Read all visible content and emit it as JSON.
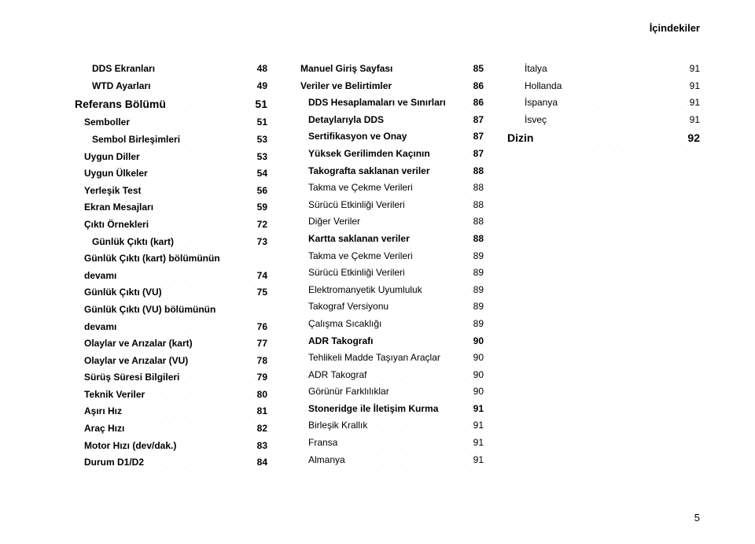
{
  "header": "İçindekiler",
  "page_number": "5",
  "columns": [
    [
      {
        "level": 2,
        "label": "DDS Ekranları",
        "page": "48"
      },
      {
        "level": 2,
        "label": "WTD Ayarları",
        "page": "49"
      },
      {
        "level": 0,
        "label": "Referans Bölümü",
        "page": "51"
      },
      {
        "level": 1,
        "label": "Semboller",
        "page": "51"
      },
      {
        "level": 2,
        "label": "Sembol Birleşimleri",
        "page": "53"
      },
      {
        "level": 1,
        "label": "Uygun Diller",
        "page": "53"
      },
      {
        "level": 1,
        "label": "Uygun Ülkeler",
        "page": "54"
      },
      {
        "level": 1,
        "label": "Yerleşik Test",
        "page": "56"
      },
      {
        "level": 1,
        "label": "Ekran Mesajları",
        "page": "59"
      },
      {
        "level": 1,
        "label": "Çıktı Örnekleri",
        "page": "72"
      },
      {
        "level": 2,
        "label": "Günlük Çıktı (kart)",
        "page": "73"
      },
      {
        "level": 1,
        "label": "Günlük Çıktı (kart) bölümünün devamı",
        "page": "74",
        "wrap": true
      },
      {
        "level": 1,
        "label": "Günlük Çıktı (VU)",
        "page": "75"
      },
      {
        "level": 1,
        "label": "Günlük Çıktı (VU) bölümünün devamı",
        "page": "76",
        "wrap": true
      },
      {
        "level": 1,
        "label": "Olaylar ve Arızalar (kart)",
        "page": "77"
      },
      {
        "level": 1,
        "label": "Olaylar ve Arızalar (VU)",
        "page": "78"
      },
      {
        "level": 1,
        "label": "Sürüş Süresi Bilgileri",
        "page": "79"
      },
      {
        "level": 1,
        "label": "Teknik Veriler",
        "page": "80"
      },
      {
        "level": 1,
        "label": "Aşırı Hız",
        "page": "81"
      },
      {
        "level": 1,
        "label": "Araç Hızı",
        "page": "82"
      },
      {
        "level": 1,
        "label": "Motor Hızı (dev/dak.)",
        "page": "83"
      },
      {
        "level": 1,
        "label": "Durum D1/D2",
        "page": "84"
      }
    ],
    [
      {
        "level": 1,
        "label": "Manuel Giriş Sayfası",
        "page": "85"
      },
      {
        "level": 1,
        "label": "Veriler ve Belirtimler",
        "page": "86"
      },
      {
        "level": 2,
        "label": "DDS Hesaplamaları ve Sınırları",
        "page": "86"
      },
      {
        "level": 2,
        "label": "Detaylarıyla DDS",
        "page": "87"
      },
      {
        "level": 2,
        "label": "Sertifikasyon ve Onay",
        "page": "87"
      },
      {
        "level": 2,
        "label": "Yüksek Gerilimden Kaçının",
        "page": "87"
      },
      {
        "level": 2,
        "label": "Takografta saklanan veriler",
        "page": "88"
      },
      {
        "level": 3,
        "label": "Takma ve Çekme Verileri",
        "page": "88"
      },
      {
        "level": 3,
        "label": "Sürücü Etkinliği Verileri",
        "page": "88"
      },
      {
        "level": 3,
        "label": "Diğer Veriler",
        "page": "88"
      },
      {
        "level": 2,
        "label": "Kartta saklanan veriler",
        "page": "88"
      },
      {
        "level": 3,
        "label": "Takma ve Çekme Verileri",
        "page": "89"
      },
      {
        "level": 3,
        "label": "Sürücü Etkinliği Verileri",
        "page": "89"
      },
      {
        "level": 3,
        "label": "Elektromanyetik Uyumluluk",
        "page": "89"
      },
      {
        "level": 3,
        "label": "Takograf Versiyonu",
        "page": "89"
      },
      {
        "level": 3,
        "label": "Çalışma Sıcaklığı",
        "page": "89"
      },
      {
        "level": 2,
        "label": "ADR Takografı",
        "page": "90"
      },
      {
        "level": 3,
        "label": "Tehlikeli Madde Taşıyan Araçlar",
        "page": "90"
      },
      {
        "level": 3,
        "label": "ADR Takograf",
        "page": "90"
      },
      {
        "level": 3,
        "label": "Görünür Farklılıklar",
        "page": "90"
      },
      {
        "level": 2,
        "label": "Stoneridge ile İletişim Kurma",
        "page": "91"
      },
      {
        "level": 3,
        "label": "Birleşik Krallık",
        "page": "91"
      },
      {
        "level": 3,
        "label": "Fransa",
        "page": "91"
      },
      {
        "level": 3,
        "label": "Almanya",
        "page": "91"
      }
    ],
    [
      {
        "level": 3,
        "label": "İtalya",
        "page": "91"
      },
      {
        "level": 3,
        "label": "Hollanda",
        "page": "91"
      },
      {
        "level": 3,
        "label": "İspanya",
        "page": "91"
      },
      {
        "level": 3,
        "label": "İsveç",
        "page": "91"
      },
      {
        "level": 0,
        "label": "Dizin",
        "page": "92"
      }
    ]
  ]
}
